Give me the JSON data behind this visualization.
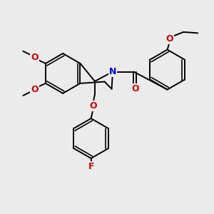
{
  "bg_color": "#ebebeb",
  "bond_color": "#000000",
  "bond_width": 1.4,
  "N_color": "#0000cc",
  "O_color": "#cc0000",
  "F_color": "#cc0000",
  "figsize": [
    3.0,
    3.0
  ],
  "dpi": 100,
  "xlim": [
    0,
    10
  ],
  "ylim": [
    0,
    10
  ]
}
